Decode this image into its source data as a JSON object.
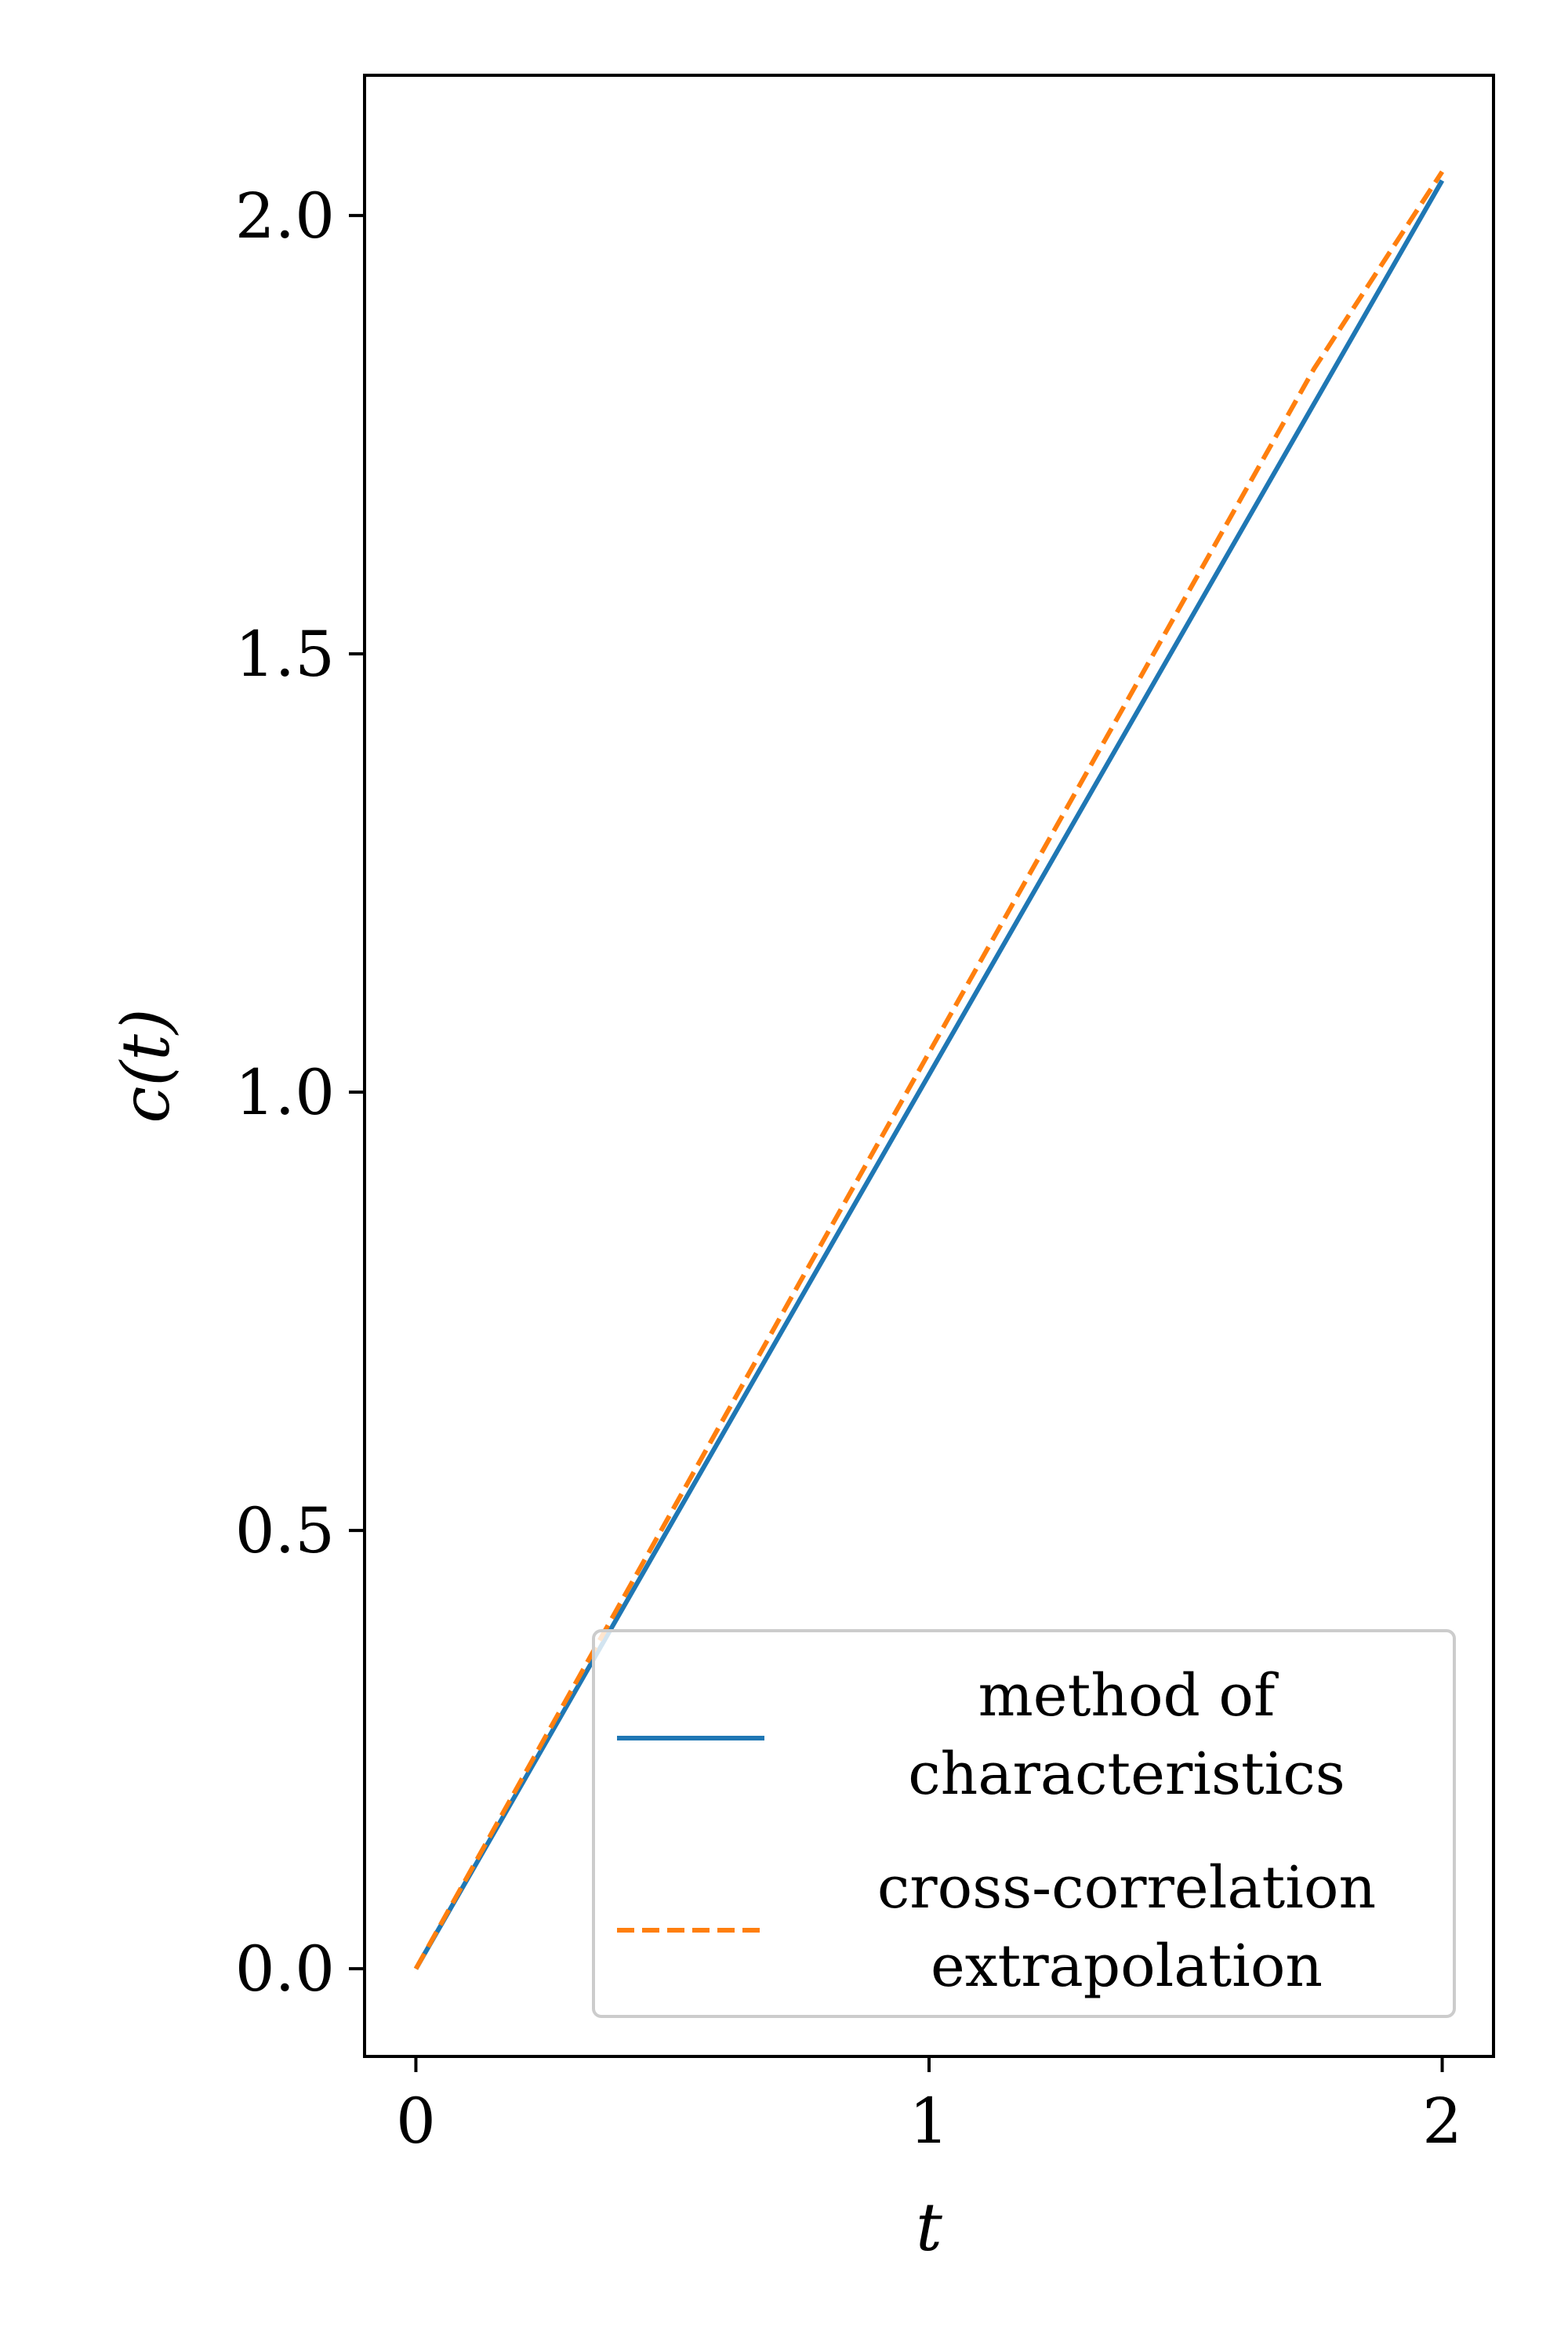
{
  "chart_data": {
    "type": "line",
    "xlabel": "t",
    "ylabel": "c(t)",
    "xlim": [
      -0.1,
      2.1
    ],
    "ylim": [
      -0.1,
      2.16
    ],
    "xticks": [
      0,
      1,
      2
    ],
    "xtick_labels": [
      "0",
      "1",
      "2"
    ],
    "yticks": [
      0.0,
      0.5,
      1.0,
      1.5,
      2.0
    ],
    "ytick_labels": [
      "0.0",
      "0.5",
      "1.0",
      "1.5",
      "2.0"
    ],
    "grid": false,
    "legend_position": "lower-right",
    "series": [
      {
        "name_lines": [
          "method of",
          "characteristics"
        ],
        "style": "solid",
        "color": "#1f77b4",
        "x": [
          0.0,
          0.25,
          0.5,
          0.75,
          1.0,
          1.25,
          1.5,
          1.75,
          2.0
        ],
        "y": [
          0.0,
          0.255,
          0.51,
          0.765,
          1.02,
          1.275,
          1.53,
          1.785,
          2.04
        ]
      },
      {
        "name_lines": [
          "cross-correlation",
          "extrapolation"
        ],
        "style": "dashed",
        "color": "#ff7f0e",
        "x": [
          0.0,
          0.25,
          0.5,
          0.75,
          1.0,
          1.25,
          1.5,
          1.75,
          2.0
        ],
        "y": [
          0.0,
          0.262,
          0.523,
          0.785,
          1.045,
          1.305,
          1.565,
          1.825,
          2.05
        ]
      }
    ]
  }
}
